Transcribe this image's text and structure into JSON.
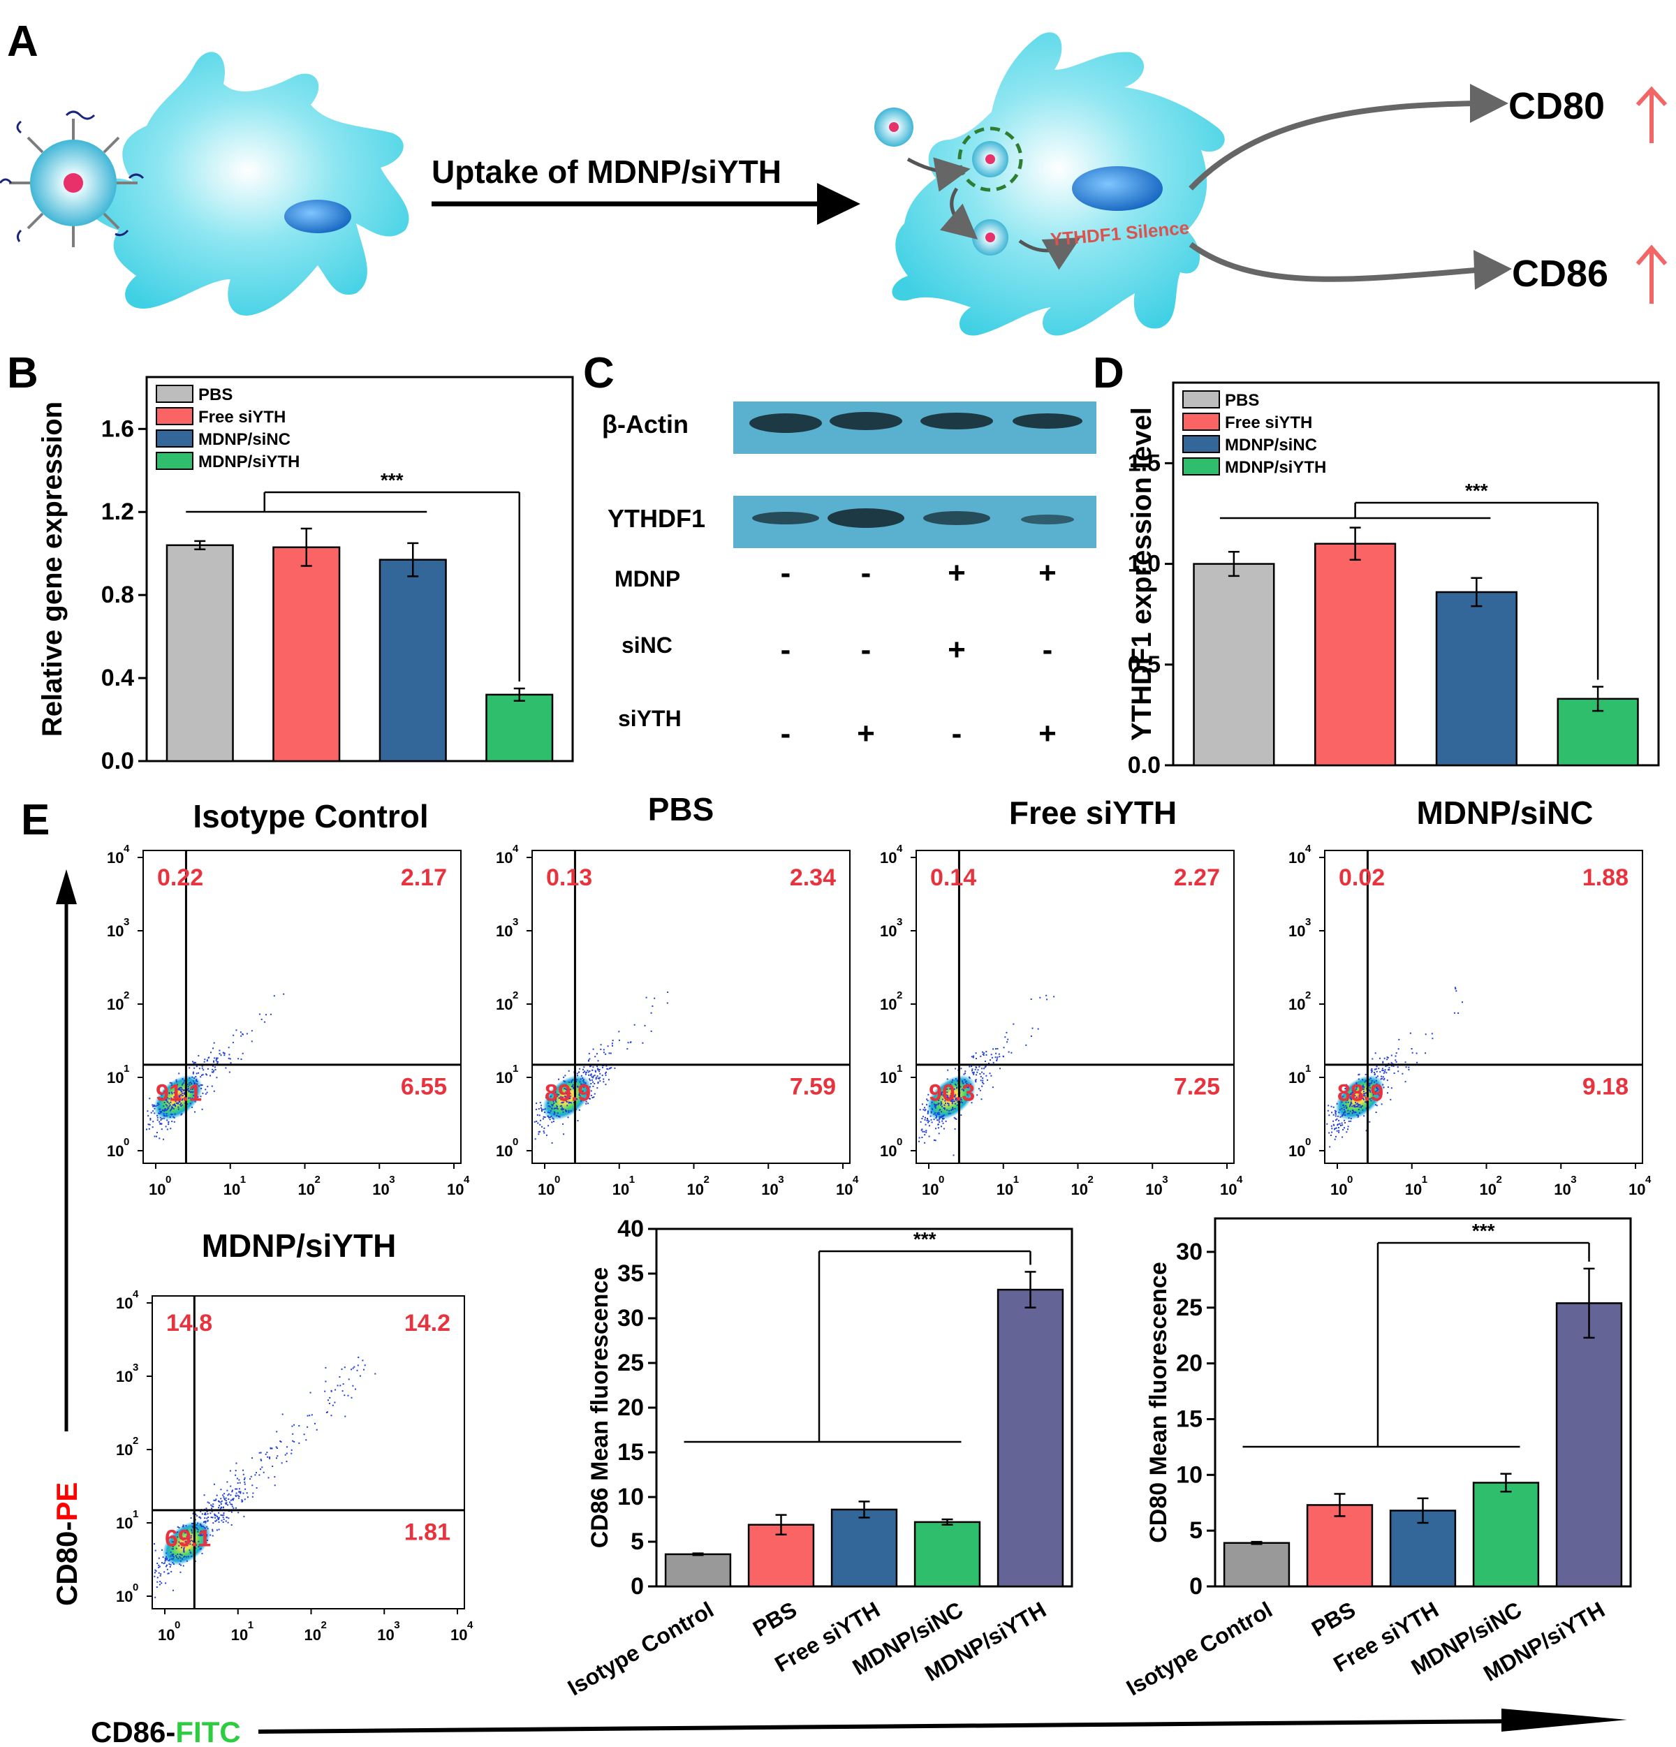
{
  "panel_letters": {
    "a": "A",
    "b": "B",
    "c": "C",
    "d": "D",
    "e": "E"
  },
  "panel_a": {
    "arrow_label": "Uptake of MDNP/siYTH",
    "silence_label": "YTHDF1 Silence",
    "marker1": "CD80",
    "marker2": "CD86"
  },
  "panel_c": {
    "band1": "β-Actin",
    "band2": "YTHDF1",
    "row_labels": [
      "MDNP",
      "siNC",
      "siYTH"
    ],
    "signs": [
      [
        "-",
        "-",
        "+",
        "+"
      ],
      [
        "-",
        "-",
        "+",
        "-"
      ],
      [
        "-",
        "+",
        "-",
        "+"
      ]
    ]
  },
  "panel_e": {
    "y_axis": {
      "prefix": "CD80-",
      "suffix": "PE"
    },
    "x_axis": {
      "prefix": "CD86-",
      "suffix": "FITC"
    },
    "colors": {
      "pe": "#ff0000",
      "fitc": "#2ecc40"
    }
  },
  "colors": {
    "gray": "#bdbdbd",
    "red": "#fa6464",
    "blue": "#336699",
    "green": "#2fbe6b",
    "purple": "#646496",
    "iso_gray": "#999999",
    "cell": "#5dd9e8",
    "quad_text": "#e8333e"
  },
  "chart_data": [
    {
      "id": "B",
      "type": "bar",
      "ylabel": "Relative gene expression",
      "categories": [
        "PBS",
        "Free siYTH",
        "MDNP/siNC",
        "MDNP/siYTH"
      ],
      "values": [
        1.04,
        1.03,
        0.97,
        0.32
      ],
      "errors": [
        0.02,
        0.09,
        0.08,
        0.03
      ],
      "legend": [
        "PBS",
        "Free siYTH",
        "MDNP/siNC",
        "MDNP/siYTH"
      ],
      "legend_position": "top-left",
      "ylim": [
        0,
        1.85
      ],
      "yticks": [
        "0.0",
        "0.4",
        "0.8",
        "1.2",
        "1.6"
      ],
      "significance": "***"
    },
    {
      "id": "D",
      "type": "bar",
      "ylabel": "YTHDF1 expression level",
      "categories": [
        "PBS",
        "Free siYTH",
        "MDNP/siNC",
        "MDNP/siYTH"
      ],
      "values": [
        1.0,
        1.1,
        0.86,
        0.33
      ],
      "errors": [
        0.06,
        0.08,
        0.07,
        0.06
      ],
      "legend": [
        "PBS",
        "Free siYTH",
        "MDNP/siNC",
        "MDNP/siYTH"
      ],
      "legend_position": "top-left",
      "ylim": [
        0,
        1.9
      ],
      "yticks": [
        "0.0",
        "0.5",
        "1.0",
        "1.5"
      ],
      "significance": "***"
    },
    {
      "id": "E-flow",
      "type": "scatter",
      "xlabel": "CD86-FITC",
      "ylabel": "CD80-PE",
      "xticks": [
        "10",
        "10",
        "10",
        "10",
        "10"
      ],
      "tick_exponents": [
        "0",
        "1",
        "2",
        "3",
        "4"
      ],
      "plots": [
        {
          "title": "Isotype Control",
          "UL": "0.22",
          "UR": "2.17",
          "LL": "91.1",
          "LR": "6.55"
        },
        {
          "title": "PBS",
          "UL": "0.13",
          "UR": "2.34",
          "LL": "89.9",
          "LR": "7.59"
        },
        {
          "title": "Free siYTH",
          "UL": "0.14",
          "UR": "2.27",
          "LL": "90.3",
          "LR": "7.25"
        },
        {
          "title": "MDNP/siNC",
          "UL": "0.02",
          "UR": "1.88",
          "LL": "88.9",
          "LR": "9.18"
        },
        {
          "title": "MDNP/siYTH",
          "UL": "14.8",
          "UR": "14.2",
          "LL": "69.1",
          "LR": "1.81"
        }
      ]
    },
    {
      "id": "E-CD86",
      "type": "bar",
      "ylabel": "CD86 Mean fluorescence",
      "categories": [
        "Isotype Control",
        "PBS",
        "Free siYTH",
        "MDNP/siNC",
        "MDNP/siYTH"
      ],
      "values": [
        3.6,
        6.9,
        8.6,
        7.2,
        33.2
      ],
      "errors": [
        0.1,
        1.1,
        0.9,
        0.3,
        2.0
      ],
      "ylim": [
        0,
        40
      ],
      "yticks": [
        "0",
        "5",
        "10",
        "15",
        "20",
        "25",
        "30",
        "35",
        "40"
      ],
      "significance": "***"
    },
    {
      "id": "E-CD80",
      "type": "bar",
      "ylabel": "CD80 Mean fluorescence",
      "categories": [
        "Isotype Control",
        "PBS",
        "Free siYTH",
        "MDNP/siNC",
        "MDNP/siYTH"
      ],
      "values": [
        3.9,
        7.3,
        6.8,
        9.3,
        25.4
      ],
      "errors": [
        0.1,
        1.0,
        1.1,
        0.8,
        3.1
      ],
      "ylim": [
        0,
        33
      ],
      "yticks": [
        "0",
        "5",
        "10",
        "15",
        "20",
        "25",
        "30"
      ],
      "significance": "***"
    }
  ]
}
